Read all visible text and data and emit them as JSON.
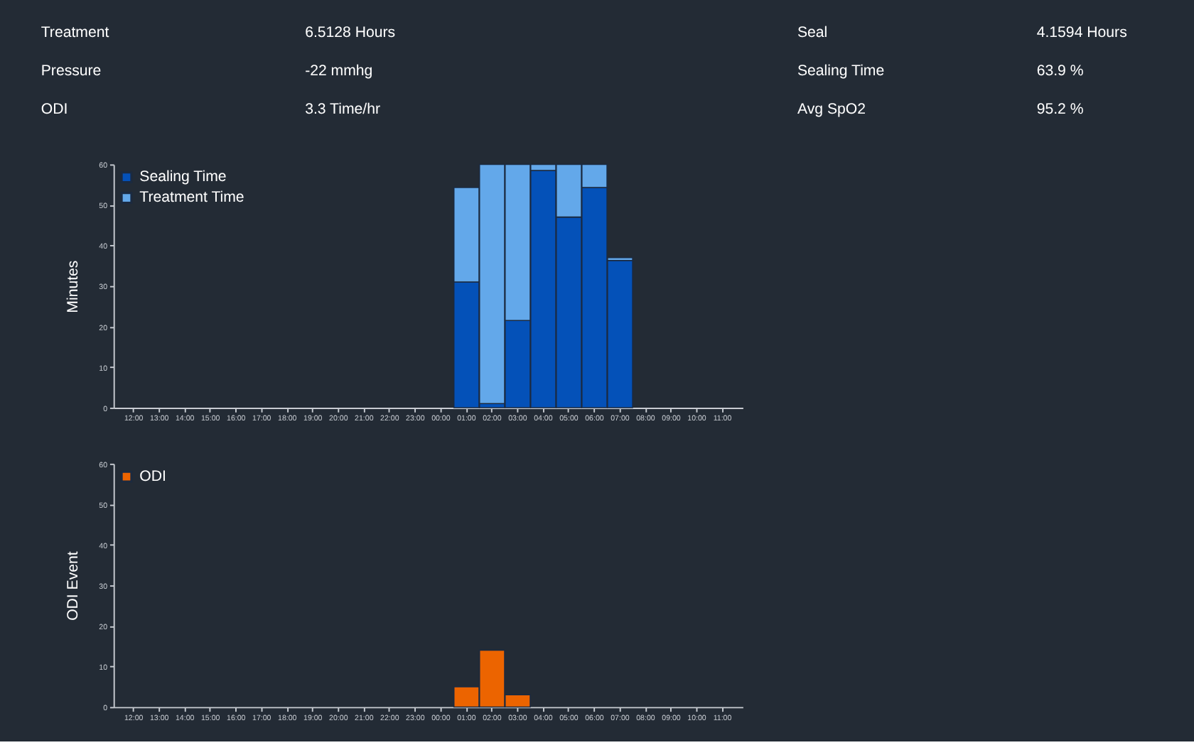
{
  "chart_data": [
    {
      "type": "other",
      "annotations": [
        "Treatment",
        "6.5128 Hours",
        "Seal",
        "4.1594 Hours",
        "Pressure",
        "-22 mmhg",
        "Sealing Time",
        "63.9 %",
        "ODI",
        "3.3 Time/hr",
        "Avg SpO2",
        "95.2 %"
      ]
    },
    {
      "type": "bar",
      "ylabel": "Minutes",
      "stacked": true,
      "legend": "top left",
      "ylim": [
        0,
        60
      ],
      "yticks": [
        0,
        10,
        20,
        30,
        40,
        50,
        60
      ],
      "categories": [
        "12:00",
        "13:00",
        "14:00",
        "15:00",
        "16:00",
        "17:00",
        "18:00",
        "19:00",
        "20:00",
        "21:00",
        "22:00",
        "23:00",
        "00:00",
        "01:00",
        "02:00",
        "03:00",
        "04:00",
        "05:00",
        "06:00",
        "07:00",
        "08:00",
        "09:00",
        "10:00",
        "11:00"
      ],
      "series": [
        {
          "name": "Sealing Time",
          "color": "#0451b8",
          "values": [
            null,
            null,
            null,
            null,
            null,
            null,
            null,
            null,
            null,
            null,
            null,
            null,
            null,
            31,
            1,
            21.5,
            58.5,
            47,
            54.3,
            36.3,
            null,
            null,
            null,
            null
          ]
        },
        {
          "name": "Treatment Time",
          "color": "#63a8ea",
          "values": [
            null,
            null,
            null,
            null,
            null,
            null,
            null,
            null,
            null,
            null,
            null,
            null,
            null,
            23.3,
            59,
            38.5,
            1.5,
            13,
            5.7,
            0.7,
            null,
            null,
            null,
            null
          ]
        }
      ]
    },
    {
      "type": "bar",
      "ylabel": "ODI Event",
      "legend": "top left",
      "ylim": [
        0,
        60
      ],
      "yticks": [
        0,
        10,
        20,
        30,
        40,
        50,
        60
      ],
      "categories": [
        "12:00",
        "13:00",
        "14:00",
        "15:00",
        "16:00",
        "17:00",
        "18:00",
        "19:00",
        "20:00",
        "21:00",
        "22:00",
        "23:00",
        "00:00",
        "01:00",
        "02:00",
        "03:00",
        "04:00",
        "05:00",
        "06:00",
        "07:00",
        "08:00",
        "09:00",
        "10:00",
        "11:00"
      ],
      "series": [
        {
          "name": "ODI",
          "color": "#ec6400",
          "values": [
            null,
            null,
            null,
            null,
            null,
            null,
            null,
            null,
            null,
            null,
            null,
            null,
            null,
            5,
            14,
            3,
            null,
            null,
            null,
            null,
            null,
            null,
            null,
            null
          ]
        }
      ]
    }
  ]
}
